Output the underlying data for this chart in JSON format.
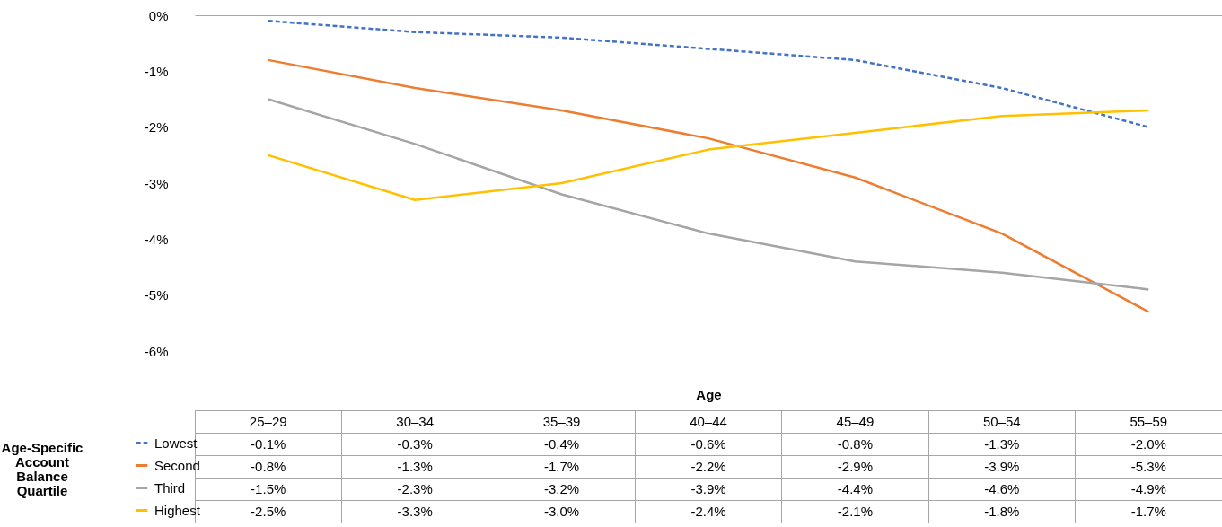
{
  "chart_data": {
    "type": "line",
    "xlabel": "Age",
    "legend_title": "Age-Specific Account Balance Quartile",
    "categories": [
      "25–29",
      "30–34",
      "35–39",
      "40–44",
      "45–49",
      "50–54",
      "55–59"
    ],
    "series": [
      {
        "name": "Lowest",
        "color": "#4472c4",
        "line_style": "dashed",
        "values": [
          -0.1,
          -0.3,
          -0.4,
          -0.6,
          -0.8,
          -1.3,
          -2.0
        ],
        "value_labels": [
          "-0.1%",
          "-0.3%",
          "-0.4%",
          "-0.6%",
          "-0.8%",
          "-1.3%",
          "-2.0%"
        ]
      },
      {
        "name": "Second",
        "color": "#ed7d31",
        "line_style": "solid",
        "values": [
          -0.8,
          -1.3,
          -1.7,
          -2.2,
          -2.9,
          -3.9,
          -5.3
        ],
        "value_labels": [
          "-0.8%",
          "-1.3%",
          "-1.7%",
          "-2.2%",
          "-2.9%",
          "-3.9%",
          "-5.3%"
        ]
      },
      {
        "name": "Third",
        "color": "#a5a5a5",
        "line_style": "solid",
        "values": [
          -1.5,
          -2.3,
          -3.2,
          -3.9,
          -4.4,
          -4.6,
          -4.9
        ],
        "value_labels": [
          "-1.5%",
          "-2.3%",
          "-3.2%",
          "-3.9%",
          "-4.4%",
          "-4.6%",
          "-4.9%"
        ]
      },
      {
        "name": "Highest",
        "color": "#ffc000",
        "line_style": "solid",
        "values": [
          -2.5,
          -3.3,
          -3.0,
          -2.4,
          -2.1,
          -1.8,
          -1.7
        ],
        "value_labels": [
          "-2.5%",
          "-3.3%",
          "-3.0%",
          "-2.4%",
          "-2.1%",
          "-1.8%",
          "-1.7%"
        ]
      }
    ],
    "ylim": [
      -6,
      0
    ],
    "yticks": [
      {
        "value": 0,
        "label": "0%"
      },
      {
        "value": -1,
        "label": "-1%"
      },
      {
        "value": -2,
        "label": "-2%"
      },
      {
        "value": -3,
        "label": "-3%"
      },
      {
        "value": -4,
        "label": "-4%"
      },
      {
        "value": -5,
        "label": "-5%"
      },
      {
        "value": -6,
        "label": "-6%"
      }
    ],
    "grid": false,
    "legend": "bottom left",
    "marker": "none"
  }
}
